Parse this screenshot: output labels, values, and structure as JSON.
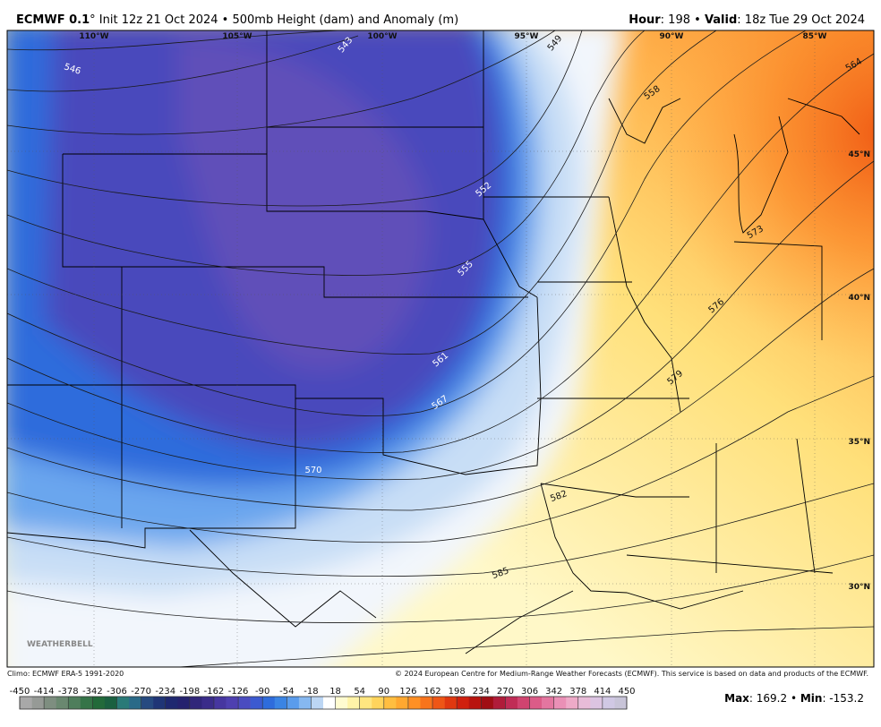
{
  "header": {
    "model": "ECMWF 0.1",
    "description": "° Init 12z 21 Oct 2024 • 500mb Height (dam) and Anomaly (m)",
    "hour_label": "Hour",
    "hour": ": 198 • ",
    "valid_label": "Valid",
    "valid": ": 18z Tue 29 Oct 2024"
  },
  "map": {
    "lon_labels": [
      "110°W",
      "105°W",
      "100°W",
      "95°W",
      "90°W",
      "85°W"
    ],
    "lat_labels": [
      "45°N",
      "40°N",
      "35°N",
      "30°N"
    ],
    "contour_labels": [
      "546",
      "543",
      "549",
      "558",
      "564",
      "552",
      "573",
      "555",
      "576",
      "561",
      "579",
      "567",
      "570",
      "582",
      "585"
    ],
    "watermark": "WEATHERBELL"
  },
  "footer": {
    "climo": "Climo: ECMWF ERA-5 1991-2020",
    "copyright": "© 2024 European Centre for Medium-Range Weather Forecasts (ECMWF). This service is based on data and products of the ECMWF."
  },
  "colorbar": {
    "ticks": [
      -450,
      -414,
      -378,
      -342,
      -306,
      -270,
      -234,
      -198,
      -162,
      -126,
      -90,
      -54,
      -18,
      18,
      54,
      90,
      126,
      162,
      198,
      234,
      270,
      306,
      342,
      378,
      414,
      450
    ],
    "colors": [
      "#a8a8a8",
      "#969a96",
      "#7e8e80",
      "#6a8870",
      "#4f7e5c",
      "#357448",
      "#226a3a",
      "#1a6040",
      "#2a7a78",
      "#2a6a88",
      "#264a80",
      "#1f3576",
      "#1e2870",
      "#24226e",
      "#30267a",
      "#3a2c8a",
      "#4636a0",
      "#4e40b0",
      "#4a4cc0",
      "#3c5ad0",
      "#2e6cdc",
      "#3a84e4",
      "#5a9cec",
      "#86b8f0",
      "#bcd6f4",
      "#ffffff",
      "#fffbd0",
      "#fff3a8",
      "#ffe680",
      "#ffd45c",
      "#ffbe40",
      "#ffa830",
      "#ff9024",
      "#f8741c",
      "#ee5616",
      "#e03810",
      "#d0200e",
      "#b8140e",
      "#a00e14",
      "#b01c3a",
      "#c02c56",
      "#d04470",
      "#dc5c88",
      "#e476a0",
      "#ea90b6",
      "#eeaac8",
      "#e8bcd8",
      "#dcc4e2",
      "#d0c8e4",
      "#c8c4d8"
    ]
  },
  "stats": {
    "max_label": "Max",
    "max": ": 169.2 • ",
    "min_label": "Min",
    "min": ": -153.2"
  }
}
